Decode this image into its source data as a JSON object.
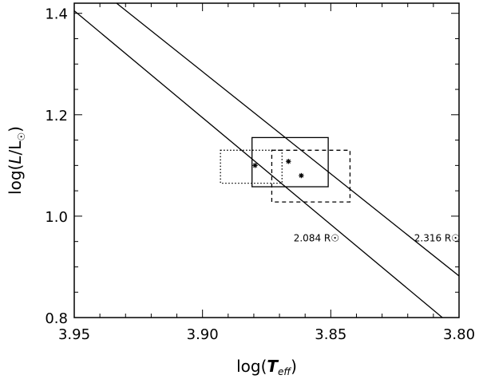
{
  "chart_data": {
    "type": "line",
    "title": "",
    "xlabel": "log(T_eff)",
    "ylabel": "log(L/L☉)",
    "xlim": [
      3.95,
      3.8
    ],
    "ylim": [
      0.8,
      1.42
    ],
    "x_reversed": true,
    "x_ticks": [
      "3.95",
      "3.90",
      "3.85",
      "3.80"
    ],
    "x_tick_values": [
      3.95,
      3.9,
      3.85,
      3.8
    ],
    "y_ticks": [
      "0.8",
      "1.0",
      "1.2",
      "1.4"
    ],
    "y_tick_values": [
      0.8,
      1.0,
      1.2,
      1.4
    ],
    "grid": false,
    "series": [
      {
        "label": "2.084 R☉",
        "style": "solid",
        "points": [
          [
            3.95,
            1.405
          ],
          [
            3.8065,
            0.8
          ]
        ]
      },
      {
        "label": "2.316 R☉",
        "style": "solid",
        "points": [
          [
            3.9335,
            1.42
          ],
          [
            3.8,
            0.882
          ]
        ]
      }
    ],
    "points": [
      {
        "x": 3.8795,
        "y": 1.1
      },
      {
        "x": 3.8665,
        "y": 1.108
      },
      {
        "x": 3.8615,
        "y": 1.08
      }
    ],
    "error_boxes": [
      {
        "style": "solid",
        "x": [
          3.8807,
          3.851
        ],
        "y": [
          1.058,
          1.155
        ]
      },
      {
        "style": "dotted",
        "x": [
          3.893,
          3.869
        ],
        "y": [
          1.065,
          1.13
        ]
      },
      {
        "style": "dashed",
        "x": [
          3.873,
          3.8425
        ],
        "y": [
          1.028,
          1.13
        ]
      }
    ],
    "annotations": [
      {
        "text": "2.084 R☉",
        "x": 3.8645,
        "y": 0.95
      },
      {
        "text": "2.316 R☉",
        "x": 3.8175,
        "y": 0.95
      }
    ]
  }
}
